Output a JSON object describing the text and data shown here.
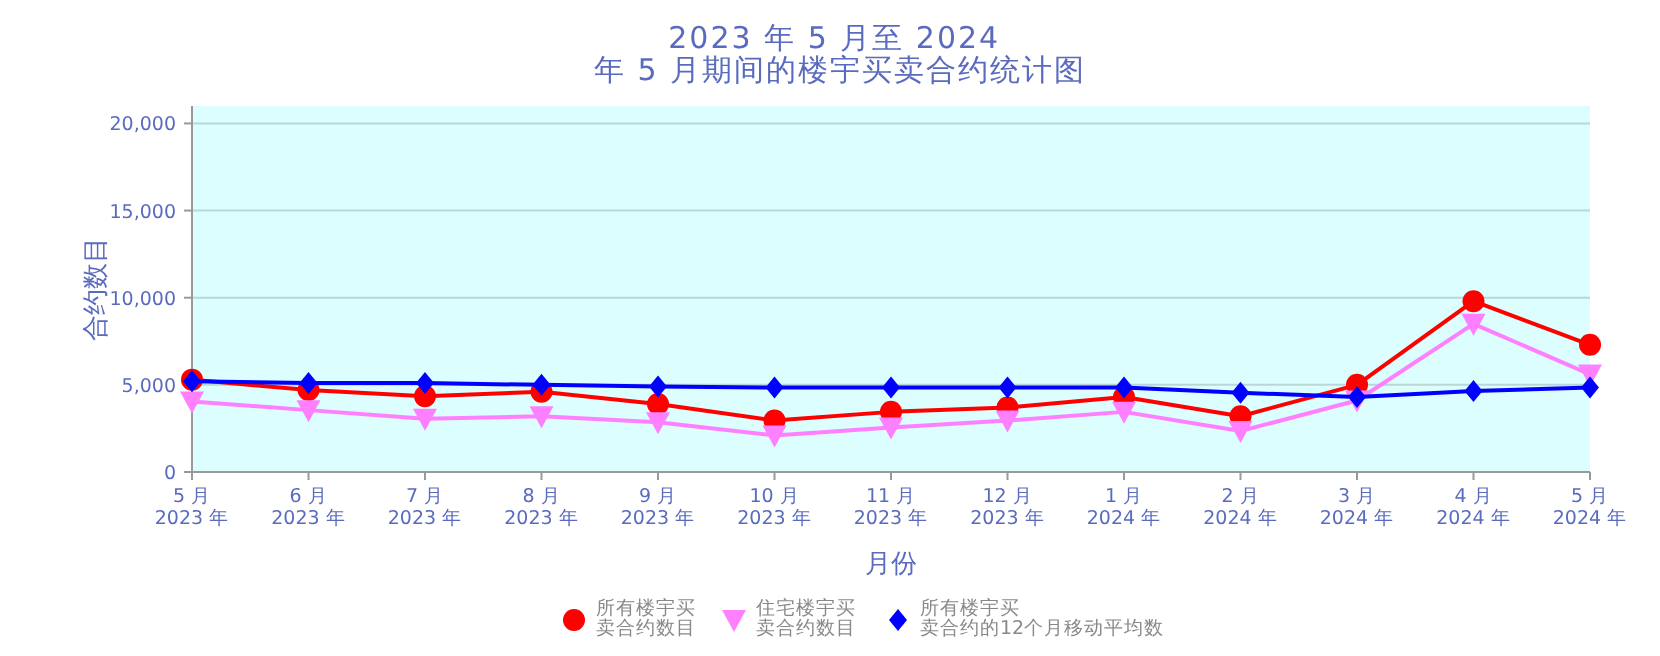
{
  "chart_data": {
    "type": "line",
    "title": "2023 年 5 月至 2024 年 5 月期间的楼宇买卖合约统计图",
    "xlabel": "月份",
    "ylabel": "合约数目",
    "categories": [
      "5 月 2023 年",
      "6 月 2023 年",
      "7 月 2023 年",
      "8 月 2023 年",
      "9 月 2023 年",
      "10 月 2023 年",
      "11 月 2023 年",
      "12 月 2023 年",
      "1 月 2024 年",
      "2 月 2024 年",
      "3 月 2024 年",
      "4 月 2024 年",
      "5 月 2024 年"
    ],
    "series": [
      {
        "name": "所有楼宇买卖合约数目",
        "color": "#ff0000",
        "marker": "circle",
        "values": [
          5300,
          4700,
          4350,
          4600,
          3900,
          2950,
          3450,
          3700,
          4300,
          3200,
          5000,
          9800,
          7300
        ]
      },
      {
        "name": "住宅楼宇买卖合约数目",
        "color": "#ff80ff",
        "marker": "triangle",
        "values": [
          4050,
          3550,
          3050,
          3200,
          2850,
          2100,
          2550,
          2950,
          3450,
          2350,
          4100,
          8500,
          5600
        ]
      },
      {
        "name": "所有楼宇买卖合约的12个月移动平均数",
        "color": "#0000ff",
        "marker": "diamond",
        "values": [
          5200,
          5100,
          5100,
          5000,
          4900,
          4850,
          4850,
          4850,
          4850,
          4550,
          4300,
          4650,
          4850
        ]
      }
    ],
    "ylim": [
      0,
      21000
    ],
    "yticks": [
      {
        "value": 0,
        "label": "0"
      },
      {
        "value": 5000,
        "label": "5,000"
      },
      {
        "value": 10000,
        "label": "10,000"
      },
      {
        "value": 15000,
        "label": "15,000"
      },
      {
        "value": 20000,
        "label": "20,000"
      }
    ],
    "grid": "y",
    "legend": "bottom",
    "line_style": "solid"
  }
}
